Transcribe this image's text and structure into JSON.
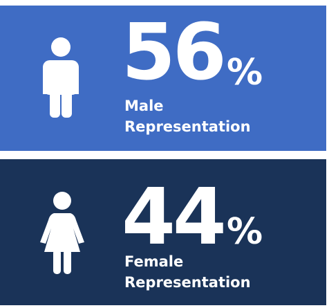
{
  "stats": [
    {
      "value": 56,
      "unit": "%",
      "label": [
        "Male",
        "Representation"
      ]
    },
    {
      "value": 44,
      "unit": "%",
      "label": [
        "Female",
        "Representation"
      ]
    }
  ]
}
